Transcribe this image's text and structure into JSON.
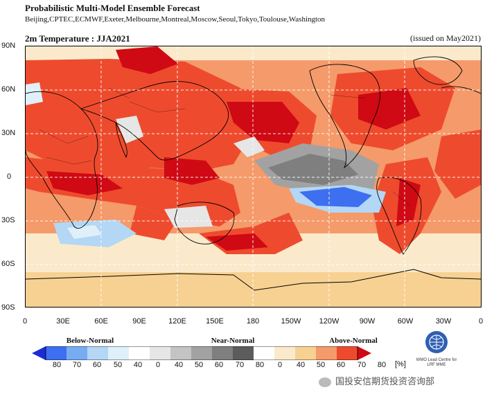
{
  "header": {
    "title": "Probabilistic Multi-Model Ensemble Forecast",
    "subtitle": "Beijing,CPTEC,ECMWF,Exeter,Melbourne,Montreal,Moscow,Seoul,Tokyo,Toulouse,Washington"
  },
  "map": {
    "title": "2m Temperature : JJA2021",
    "issued": "(issued on May2021)",
    "lat_labels": [
      "90N",
      "60N",
      "30N",
      "0",
      "30S",
      "60S",
      "90S"
    ],
    "lon_labels": [
      "0",
      "30E",
      "60E",
      "90E",
      "120E",
      "150E",
      "180",
      "150W",
      "120W",
      "90W",
      "60W",
      "30W",
      "0"
    ]
  },
  "legend": {
    "categories": [
      "Below-Normal",
      "Near-Normal",
      "Above-Normal"
    ],
    "labels": [
      "80",
      "70",
      "60",
      "50",
      "40",
      "0",
      "40",
      "50",
      "60",
      "70",
      "80",
      "0",
      "40",
      "50",
      "60",
      "70",
      "80"
    ],
    "unit": "[%]",
    "colors": [
      "#1d2bd6",
      "#3d6ff0",
      "#78acf2",
      "#b3d7f5",
      "#dff0fa",
      "#ffffff",
      "#e6e6e6",
      "#c4c4c4",
      "#a2a2a2",
      "#7f7f7f",
      "#5c5c5c",
      "#ffffff",
      "#faeacb",
      "#f7d192",
      "#f59a6a",
      "#ee4b2e",
      "#cf0a14"
    ]
  },
  "logo": {
    "icon": "wmo-emblem-icon",
    "text": "WMO Lead Centre for LRF MME"
  },
  "watermark": {
    "icon": "wechat-icon",
    "text": "国投安信期货投资咨询部"
  }
}
